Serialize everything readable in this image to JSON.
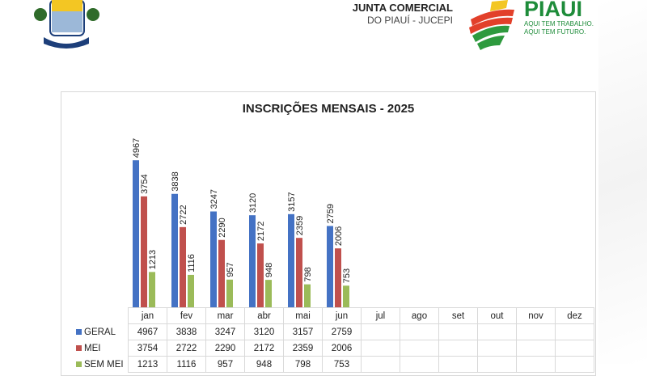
{
  "header": {
    "org_line1": "JUNTA COMERCIAL",
    "org_line2": "DO PIAUÍ - JUCEPI",
    "brand": "PIAUÍ",
    "slogan_line1": "AQUI TEM TRABALHO.",
    "slogan_line2": "AQUI TEM FUTURO."
  },
  "chart_data": {
    "type": "bar",
    "title": "INSCRIÇÕES MENSAIS - 2025",
    "categories": [
      "jan",
      "fev",
      "mar",
      "abr",
      "mai",
      "jun",
      "jul",
      "ago",
      "set",
      "out",
      "nov",
      "dez"
    ],
    "series": [
      {
        "name": "GERAL",
        "color": "#4472c4",
        "values": [
          4967,
          3838,
          3247,
          3120,
          3157,
          2759,
          null,
          null,
          null,
          null,
          null,
          null
        ]
      },
      {
        "name": "MEI",
        "color": "#c0504d",
        "values": [
          3754,
          2722,
          2290,
          2172,
          2359,
          2006,
          null,
          null,
          null,
          null,
          null,
          null
        ]
      },
      {
        "name": "SEM MEI",
        "color": "#9bbb59",
        "values": [
          1213,
          1116,
          957,
          948,
          798,
          753,
          null,
          null,
          null,
          null,
          null,
          null
        ]
      }
    ],
    "ylim": [
      0,
      5000
    ],
    "data_labels": "vertical, above bars",
    "data_table": true,
    "grid": false
  }
}
